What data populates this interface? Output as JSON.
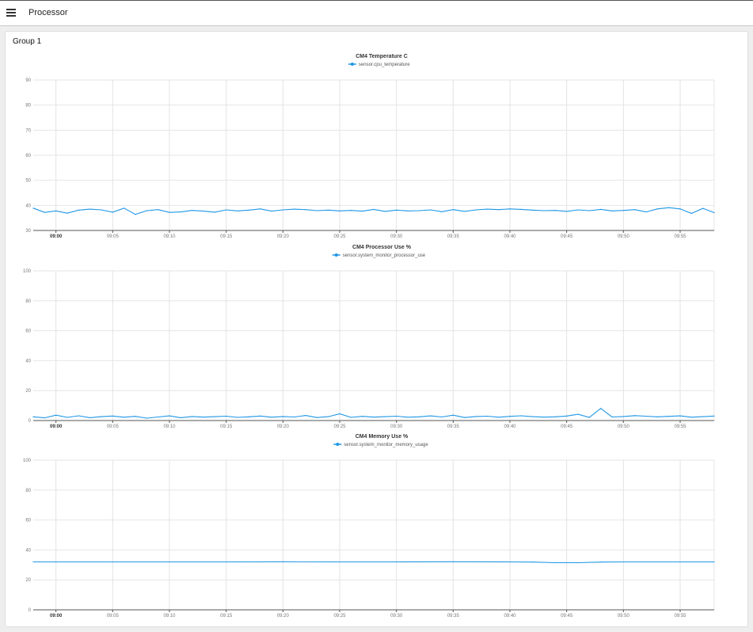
{
  "header": {
    "menu_icon": "hamburger-menu-icon",
    "title": "Processor"
  },
  "group": {
    "title": "Group 1"
  },
  "accent_color": "#1e96e6",
  "chart_data": [
    {
      "type": "line",
      "title": "CM4 Temperature  C",
      "legend": [
        "sensor.cpu_temperature"
      ],
      "ylim": [
        30,
        90
      ],
      "yticks": [
        30,
        40,
        50,
        60,
        70,
        80,
        90
      ],
      "xlim": [
        "08:58",
        "09:58"
      ],
      "xticks": [
        "09:00",
        "09:05",
        "09:10",
        "09:15",
        "09:20",
        "09:25",
        "09:30",
        "09:35",
        "09:40",
        "09:45",
        "09:50",
        "09:55"
      ],
      "grid": true,
      "legend_position": "top-center",
      "series": [
        {
          "name": "sensor.cpu_temperature",
          "color": "#1e96e6",
          "x": [
            "08:58",
            "08:59",
            "09:00",
            "09:01",
            "09:02",
            "09:03",
            "09:04",
            "09:05",
            "09:06",
            "09:07",
            "09:08",
            "09:09",
            "09:10",
            "09:11",
            "09:12",
            "09:13",
            "09:14",
            "09:15",
            "09:16",
            "09:17",
            "09:18",
            "09:19",
            "09:20",
            "09:21",
            "09:22",
            "09:23",
            "09:24",
            "09:25",
            "09:26",
            "09:27",
            "09:28",
            "09:29",
            "09:30",
            "09:31",
            "09:32",
            "09:33",
            "09:34",
            "09:35",
            "09:36",
            "09:37",
            "09:38",
            "09:39",
            "09:40",
            "09:41",
            "09:42",
            "09:43",
            "09:44",
            "09:45",
            "09:46",
            "09:47",
            "09:48",
            "09:49",
            "09:50",
            "09:51",
            "09:52",
            "09:53",
            "09:54",
            "09:55",
            "09:56",
            "09:57",
            "09:58"
          ],
          "values": [
            38.9,
            37.2,
            37.8,
            36.9,
            38.1,
            38.5,
            38.2,
            37.3,
            38.9,
            36.4,
            37.9,
            38.3,
            37.2,
            37.4,
            38.0,
            37.7,
            37.3,
            38.2,
            37.8,
            38.1,
            38.6,
            37.7,
            38.2,
            38.5,
            38.3,
            37.9,
            38.1,
            37.8,
            38.0,
            37.7,
            38.4,
            37.6,
            38.1,
            37.8,
            37.9,
            38.2,
            37.5,
            38.3,
            37.6,
            38.2,
            38.5,
            38.3,
            38.6,
            38.4,
            38.1,
            37.9,
            38.0,
            37.6,
            38.2,
            37.9,
            38.4,
            37.8,
            38.0,
            38.3,
            37.4,
            38.6,
            39.1,
            38.6,
            36.8,
            38.8,
            37.1
          ]
        }
      ]
    },
    {
      "type": "line",
      "title": "CM4 Processor Use  %",
      "legend": [
        "sensor.system_monitor_processor_use"
      ],
      "ylim": [
        0,
        100
      ],
      "yticks": [
        0,
        20,
        40,
        60,
        80,
        100
      ],
      "xlim": [
        "08:58",
        "09:58"
      ],
      "xticks": [
        "09:00",
        "09:05",
        "09:10",
        "09:15",
        "09:20",
        "09:25",
        "09:30",
        "09:35",
        "09:40",
        "09:45",
        "09:50",
        "09:55"
      ],
      "grid": true,
      "legend_position": "top-center",
      "series": [
        {
          "name": "sensor.system_monitor_processor_use",
          "color": "#1e96e6",
          "x": [
            "08:58",
            "08:59",
            "09:00",
            "09:01",
            "09:02",
            "09:03",
            "09:04",
            "09:05",
            "09:06",
            "09:07",
            "09:08",
            "09:09",
            "09:10",
            "09:11",
            "09:12",
            "09:13",
            "09:14",
            "09:15",
            "09:16",
            "09:17",
            "09:18",
            "09:19",
            "09:20",
            "09:21",
            "09:22",
            "09:23",
            "09:24",
            "09:25",
            "09:26",
            "09:27",
            "09:28",
            "09:29",
            "09:30",
            "09:31",
            "09:32",
            "09:33",
            "09:34",
            "09:35",
            "09:36",
            "09:37",
            "09:38",
            "09:39",
            "09:40",
            "09:41",
            "09:42",
            "09:43",
            "09:44",
            "09:45",
            "09:46",
            "09:47",
            "09:48",
            "09:49",
            "09:50",
            "09:51",
            "09:52",
            "09:53",
            "09:54",
            "09:55",
            "09:56",
            "09:57",
            "09:58"
          ],
          "values": [
            2.5,
            1.8,
            3.6,
            2.1,
            3.2,
            1.9,
            2.6,
            3.0,
            2.2,
            2.8,
            1.6,
            2.4,
            3.1,
            1.9,
            2.7,
            2.3,
            2.6,
            2.9,
            2.1,
            2.5,
            3.0,
            2.2,
            2.7,
            2.4,
            3.4,
            2.0,
            2.6,
            4.5,
            2.1,
            2.8,
            2.3,
            2.6,
            2.9,
            2.2,
            2.5,
            3.1,
            2.4,
            3.6,
            2.0,
            2.7,
            2.9,
            2.2,
            2.8,
            3.2,
            2.6,
            2.3,
            2.5,
            3.0,
            4.2,
            2.1,
            8.1,
            2.4,
            2.7,
            3.3,
            2.9,
            2.5,
            2.8,
            3.1,
            2.2,
            2.6,
            3.0
          ]
        }
      ]
    },
    {
      "type": "line",
      "title": "CM4 Memory Use  %",
      "legend": [
        "sensor.system_monitor_memory_usage"
      ],
      "ylim": [
        0,
        100
      ],
      "yticks": [
        0,
        20,
        40,
        60,
        80,
        100
      ],
      "xlim": [
        "08:58",
        "09:58"
      ],
      "xticks": [
        "09:00",
        "09:05",
        "09:10",
        "09:15",
        "09:20",
        "09:25",
        "09:30",
        "09:35",
        "09:40",
        "09:45",
        "09:50",
        "09:55"
      ],
      "grid": true,
      "legend_position": "top-center",
      "series": [
        {
          "name": "sensor.system_monitor_memory_usage",
          "color": "#1e96e6",
          "x": [
            "08:58",
            "09:00",
            "09:05",
            "09:10",
            "09:15",
            "09:20",
            "09:25",
            "09:30",
            "09:35",
            "09:40",
            "09:42",
            "09:44",
            "09:46",
            "09:48",
            "09:50",
            "09:55",
            "09:58"
          ],
          "values": [
            32.0,
            32.0,
            32.0,
            32.0,
            32.0,
            32.1,
            32.0,
            32.0,
            32.1,
            32.0,
            31.9,
            31.5,
            31.5,
            31.9,
            32.0,
            32.0,
            32.0
          ]
        }
      ]
    }
  ]
}
